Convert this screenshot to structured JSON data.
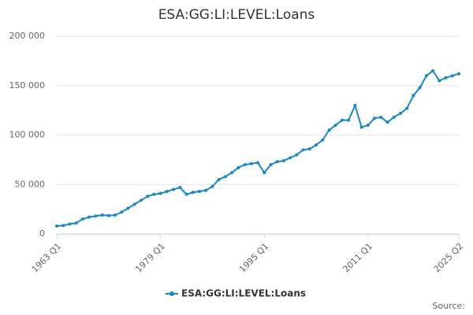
{
  "chart_data": {
    "type": "line",
    "title": "ESA:GG:LI:LEVEL:Loans",
    "source": "Source:",
    "categories": [
      "1963 Q1",
      null,
      null,
      null,
      null,
      null,
      null,
      null,
      null,
      null,
      null,
      null,
      null,
      null,
      null,
      null,
      "1979 Q1",
      null,
      null,
      null,
      null,
      null,
      null,
      null,
      null,
      null,
      null,
      null,
      null,
      null,
      null,
      null,
      "1995 Q1",
      null,
      null,
      null,
      null,
      null,
      null,
      null,
      null,
      null,
      null,
      null,
      null,
      null,
      null,
      null,
      "2011 Q1",
      null,
      null,
      null,
      null,
      null,
      null,
      null,
      null,
      null,
      null,
      null,
      null,
      null,
      "2025 Q2"
    ],
    "series": [
      {
        "name": "ESA:GG:LI:LEVEL:Loans",
        "color": "#1a87c2",
        "values": [
          8000,
          8500,
          10000,
          11000,
          15000,
          17000,
          18000,
          19000,
          18500,
          19000,
          22000,
          26000,
          30000,
          34000,
          38000,
          40000,
          41000,
          43000,
          45000,
          47000,
          40000,
          42000,
          43000,
          44000,
          48000,
          55000,
          58000,
          62000,
          67000,
          70000,
          71000,
          72000,
          62000,
          70000,
          73000,
          74000,
          77000,
          80000,
          85000,
          86000,
          90000,
          95000,
          105000,
          110000,
          115000,
          115000,
          130000,
          108000,
          110000,
          117000,
          118000,
          113000,
          118000,
          122000,
          127000,
          140000,
          148000,
          160000,
          165000,
          155000,
          158000,
          160000,
          162000
        ]
      }
    ],
    "ylim": [
      0,
      200000
    ],
    "yticks": [
      0,
      {
        "value": 50000,
        "label": "50 000"
      },
      {
        "value": 100000,
        "label": "100 000"
      },
      {
        "value": 150000,
        "label": "150 000"
      },
      {
        "value": 200000,
        "label": "200 000"
      }
    ],
    "grid": true,
    "legend": "bottom"
  }
}
